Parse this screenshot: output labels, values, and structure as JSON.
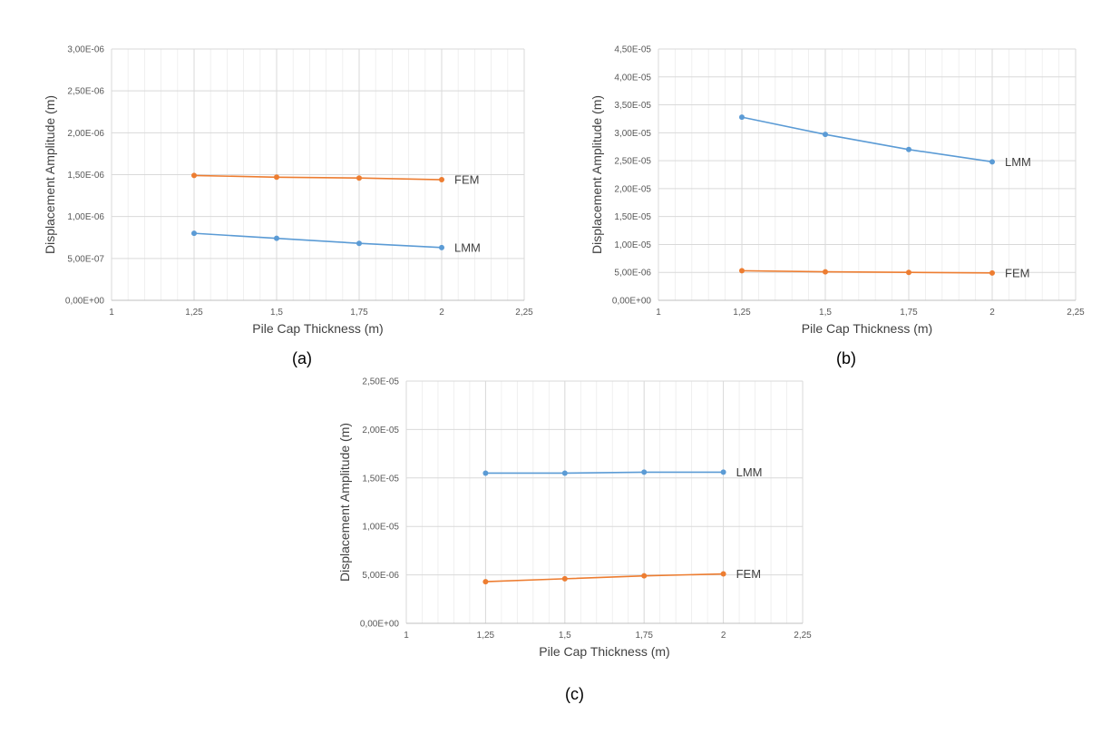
{
  "colors": {
    "lmm": "#5b9bd5",
    "fem": "#ed7d31",
    "grid": "#d9d9d9"
  },
  "captions": {
    "a": "(a)",
    "b": "(b)",
    "c": "(c)"
  },
  "chart_data": [
    {
      "id": "a",
      "type": "line",
      "xlabel": "Pile Cap Thickness (m)",
      "ylabel": "Displacement Amplitude (m)",
      "xlim": [
        1,
        2.25
      ],
      "ylim": [
        0,
        3e-06
      ],
      "xticks": [
        1,
        1.25,
        1.5,
        1.75,
        2,
        2.25
      ],
      "xtick_labels": [
        "1",
        "1,25",
        "1,5",
        "1,75",
        "2",
        "2,25"
      ],
      "yticks": [
        0,
        5e-07,
        1e-06,
        1.5e-06,
        2e-06,
        2.5e-06,
        3e-06
      ],
      "ytick_labels": [
        "0,00E+00",
        "5,00E-07",
        "1,00E-06",
        "1,50E-06",
        "2,00E-06",
        "2,50E-06",
        "3,00E-06"
      ],
      "x": [
        1.25,
        1.5,
        1.75,
        2
      ],
      "series": [
        {
          "name": "FEM",
          "color": "#ed7d31",
          "values": [
            1.49e-06,
            1.47e-06,
            1.46e-06,
            1.44e-06
          ]
        },
        {
          "name": "LMM",
          "color": "#5b9bd5",
          "values": [
            8e-07,
            7.4e-07,
            6.8e-07,
            6.3e-07
          ]
        }
      ],
      "grid": true
    },
    {
      "id": "b",
      "type": "line",
      "xlabel": "Pile Cap Thickness (m)",
      "ylabel": "Displacement Amplitude (m)",
      "xlim": [
        1,
        2.25
      ],
      "ylim": [
        0,
        4.5e-05
      ],
      "xticks": [
        1,
        1.25,
        1.5,
        1.75,
        2,
        2.25
      ],
      "xtick_labels": [
        "1",
        "1,25",
        "1,5",
        "1,75",
        "2",
        "2,25"
      ],
      "yticks": [
        0,
        5e-06,
        1e-05,
        1.5e-05,
        2e-05,
        2.5e-05,
        3e-05,
        3.5e-05,
        4e-05,
        4.5e-05
      ],
      "ytick_labels": [
        "0,00E+00",
        "5,00E-06",
        "1,00E-05",
        "1,50E-05",
        "2,00E-05",
        "2,50E-05",
        "3,00E-05",
        "3,50E-05",
        "4,00E-05",
        "4,50E-05"
      ],
      "x": [
        1.25,
        1.5,
        1.75,
        2
      ],
      "series": [
        {
          "name": "LMM",
          "color": "#5b9bd5",
          "values": [
            3.28e-05,
            2.97e-05,
            2.7e-05,
            2.48e-05
          ]
        },
        {
          "name": "FEM",
          "color": "#ed7d31",
          "values": [
            5.3e-06,
            5.1e-06,
            5e-06,
            4.9e-06
          ]
        }
      ],
      "grid": true
    },
    {
      "id": "c",
      "type": "line",
      "xlabel": "Pile Cap Thickness (m)",
      "ylabel": "Displacement Amplitude (m)",
      "xlim": [
        1,
        2.25
      ],
      "ylim": [
        0,
        2.5e-05
      ],
      "xticks": [
        1,
        1.25,
        1.5,
        1.75,
        2,
        2.25
      ],
      "xtick_labels": [
        "1",
        "1,25",
        "1,5",
        "1,75",
        "2",
        "2,25"
      ],
      "yticks": [
        0,
        5e-06,
        1e-05,
        1.5e-05,
        2e-05,
        2.5e-05
      ],
      "ytick_labels": [
        "0,00E+00",
        "5,00E-06",
        "1,00E-05",
        "1,50E-05",
        "2,00E-05",
        "2,50E-05"
      ],
      "x": [
        1.25,
        1.5,
        1.75,
        2
      ],
      "series": [
        {
          "name": "LMM",
          "color": "#5b9bd5",
          "values": [
            1.55e-05,
            1.55e-05,
            1.56e-05,
            1.56e-05
          ]
        },
        {
          "name": "FEM",
          "color": "#ed7d31",
          "values": [
            4.3e-06,
            4.6e-06,
            4.9e-06,
            5.1e-06
          ]
        }
      ],
      "grid": true
    }
  ]
}
